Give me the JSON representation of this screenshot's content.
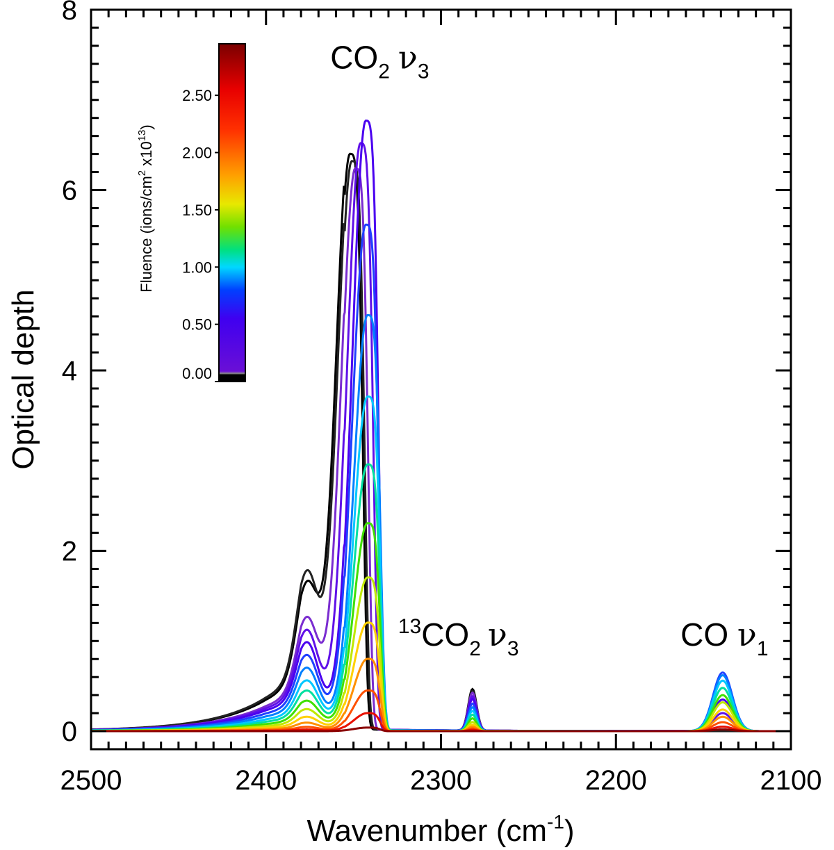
{
  "chart_data": {
    "type": "line",
    "title": "",
    "xlabel": "Wavenumber (cm",
    "xlabel_sup": "-1",
    "xlabel_close": ")",
    "ylabel": "Optical depth",
    "xlim": [
      2500,
      2100
    ],
    "ylim": [
      -0.2,
      8
    ],
    "x_ticks": [
      2500,
      2400,
      2300,
      2200,
      2100
    ],
    "y_ticks": [
      0,
      2,
      4,
      6,
      8
    ],
    "x_minor_step": 10,
    "y_minor_step": 0.2,
    "annotations": [
      {
        "id": "co2-nu3",
        "parts": [
          "CO",
          "2",
          "ν",
          "3"
        ],
        "x": 2335,
        "y": 7.35
      },
      {
        "id": "13co2-nu3",
        "parts": [
          "13",
          "CO",
          "2",
          "ν",
          "3"
        ],
        "x": 2290,
        "y": 0.95
      },
      {
        "id": "co-nu1",
        "parts": [
          "CO ",
          "ν",
          "1"
        ],
        "x": 2138,
        "y": 0.95
      }
    ],
    "colorbar": {
      "title": "Fluence (ions/cm",
      "title_sup1": "2",
      "title_mid": " x10",
      "title_sup2": "13",
      "title_close": ")",
      "ticks": [
        "0.00",
        "0.50",
        "1.00",
        "1.50",
        "2.00",
        "2.50"
      ],
      "tick_values": [
        0.0,
        0.5,
        1.0,
        1.5,
        2.0,
        2.5
      ],
      "range": [
        0,
        2.95
      ],
      "stops": [
        {
          "v": 0.0,
          "color": "#000000"
        },
        {
          "v": 0.06,
          "color": "#000000"
        },
        {
          "v": 0.07,
          "color": "#8a8a8a"
        },
        {
          "v": 0.09,
          "color": "#6a0fd6"
        },
        {
          "v": 0.55,
          "color": "#3f00f0"
        },
        {
          "v": 0.8,
          "color": "#0040ff"
        },
        {
          "v": 1.0,
          "color": "#00d8ff"
        },
        {
          "v": 1.15,
          "color": "#00e080"
        },
        {
          "v": 1.35,
          "color": "#70e000"
        },
        {
          "v": 1.55,
          "color": "#e8e800"
        },
        {
          "v": 1.8,
          "color": "#ffa000"
        },
        {
          "v": 2.2,
          "color": "#ff3000"
        },
        {
          "v": 2.55,
          "color": "#e80000"
        },
        {
          "v": 2.95,
          "color": "#7a0000"
        }
      ]
    },
    "series": [
      {
        "name": "fluence 0.00",
        "color": "#000000",
        "peak_x": 2352,
        "peaks": {
          "co2": 6.38,
          "co2_13": 0.46,
          "co": 0.0
        },
        "shoulder": 1.75
      },
      {
        "name": "fluence 0.05",
        "color": "#222222",
        "peak_x": 2351,
        "peaks": {
          "co2": 6.3,
          "co2_13": 0.44,
          "co": 0.0
        },
        "shoulder": 1.9
      },
      {
        "name": "fluence 0.10",
        "color": "#7a2cd0",
        "peak_x": 2349,
        "peaks": {
          "co2": 6.22,
          "co2_13": 0.42,
          "co": 0.05
        },
        "shoulder": 1.35
      },
      {
        "name": "fluence 0.25",
        "color": "#6010e8",
        "peak_x": 2346,
        "peaks": {
          "co2": 6.5,
          "co2_13": 0.38,
          "co": 0.2
        },
        "shoulder": 1.2
      },
      {
        "name": "fluence 0.40",
        "color": "#4a00f0",
        "peak_x": 2343,
        "peaks": {
          "co2": 6.75,
          "co2_13": 0.35,
          "co": 0.35
        },
        "shoulder": 1.05
      },
      {
        "name": "fluence 0.60",
        "color": "#2040ff",
        "peak_x": 2343,
        "peaks": {
          "co2": 5.6,
          "co2_13": 0.3,
          "co": 0.65
        },
        "shoulder": 0.9
      },
      {
        "name": "fluence 0.80",
        "color": "#0080ff",
        "peak_x": 2342,
        "peaks": {
          "co2": 4.6,
          "co2_13": 0.26,
          "co": 0.62
        },
        "shoulder": 0.75
      },
      {
        "name": "fluence 0.95",
        "color": "#00c8ff",
        "peak_x": 2342,
        "peaks": {
          "co2": 3.7,
          "co2_13": 0.22,
          "co": 0.56
        },
        "shoulder": 0.6
      },
      {
        "name": "fluence 1.10",
        "color": "#00e0a0",
        "peak_x": 2342,
        "peaks": {
          "co2": 2.95,
          "co2_13": 0.18,
          "co": 0.48
        },
        "shoulder": 0.48
      },
      {
        "name": "fluence 1.30",
        "color": "#40e000",
        "peak_x": 2342,
        "peaks": {
          "co2": 2.3,
          "co2_13": 0.14,
          "co": 0.4
        },
        "shoulder": 0.36
      },
      {
        "name": "fluence 1.50",
        "color": "#c0e800",
        "peak_x": 2342,
        "peaks": {
          "co2": 1.7,
          "co2_13": 0.1,
          "co": 0.32
        },
        "shoulder": 0.26
      },
      {
        "name": "fluence 1.70",
        "color": "#ffd000",
        "peak_x": 2342,
        "peaks": {
          "co2": 1.2,
          "co2_13": 0.07,
          "co": 0.24
        },
        "shoulder": 0.17
      },
      {
        "name": "fluence 1.90",
        "color": "#ff9000",
        "peak_x": 2342,
        "peaks": {
          "co2": 0.8,
          "co2_13": 0.05,
          "co": 0.16
        },
        "shoulder": 0.1
      },
      {
        "name": "fluence 2.15",
        "color": "#ff5000",
        "peak_x": 2342,
        "peaks": {
          "co2": 0.45,
          "co2_13": 0.03,
          "co": 0.1
        },
        "shoulder": 0.05
      },
      {
        "name": "fluence 2.45",
        "color": "#e81000",
        "peak_x": 2342,
        "peaks": {
          "co2": 0.2,
          "co2_13": 0.015,
          "co": 0.05
        },
        "shoulder": 0.02
      },
      {
        "name": "fluence 2.90",
        "color": "#8a0000",
        "peak_x": 2342,
        "peaks": {
          "co2": 0.04,
          "co2_13": 0.0,
          "co": 0.02
        },
        "shoulder": 0.0
      }
    ]
  }
}
